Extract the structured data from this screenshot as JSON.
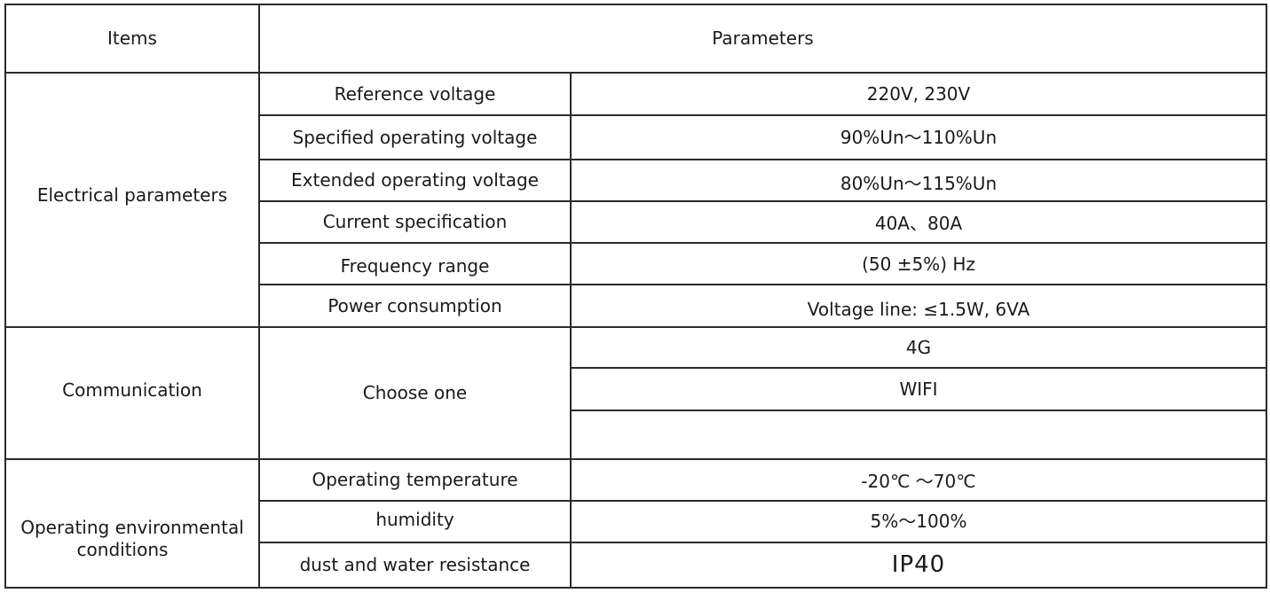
{
  "header": {
    "items": "Items",
    "parameters": "Parameters"
  },
  "groups": {
    "electrical": {
      "label": "Electrical parameters",
      "rows": [
        {
          "name": "Reference voltage",
          "value": "220V, 230V"
        },
        {
          "name": "Specified operating voltage",
          "value": "90%Un～110%Un"
        },
        {
          "name": "Extended operating voltage",
          "value": "80%Un～115%Un"
        },
        {
          "name": "Current specification",
          "value": "40A、80A"
        },
        {
          "name": "Frequency range",
          "value": "(50 ±5%) Hz"
        },
        {
          "name": "Power consumption",
          "value": "Voltage line: ≤1.5W, 6VA"
        }
      ]
    },
    "communication": {
      "label": "Communication",
      "name": "Choose one",
      "options": [
        "4G",
        "WIFI",
        ""
      ]
    },
    "environment": {
      "label_line1": "Operating environmental",
      "label_line2": "conditions",
      "rows": [
        {
          "name": "Operating temperature",
          "value": "-20℃ ～70℃"
        },
        {
          "name": "humidity",
          "value": "5%～100%"
        },
        {
          "name": "dust and water resistance",
          "value": "IP40"
        }
      ]
    }
  }
}
